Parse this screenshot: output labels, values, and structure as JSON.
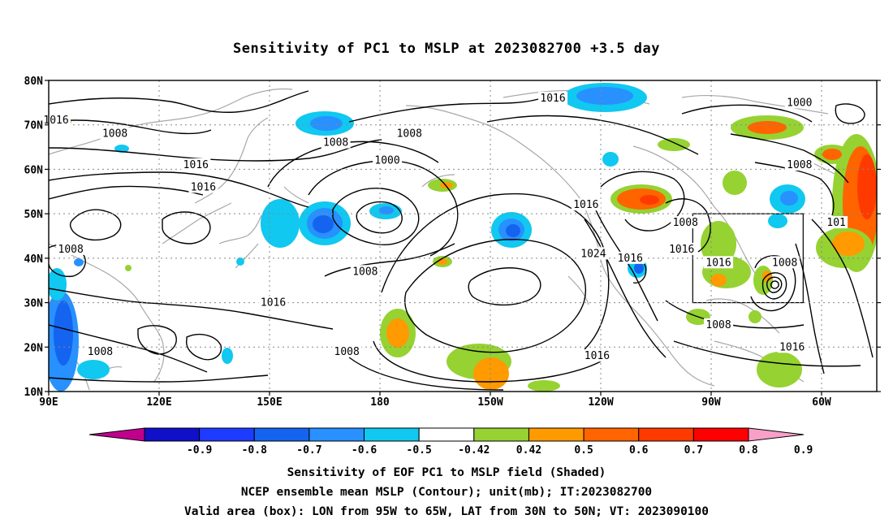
{
  "title": "Sensitivity of PC1 to MSLP at 2023082700 +3.5 day",
  "lat_ticks": [
    "80N",
    "70N",
    "60N",
    "50N",
    "40N",
    "30N",
    "20N",
    "10N"
  ],
  "lon_ticks": [
    "90E",
    "120E",
    "150E",
    "180",
    "150W",
    "120W",
    "90W",
    "60W"
  ],
  "colorbar": {
    "labels": [
      "-0.9",
      "-0.8",
      "-0.7",
      "-0.6",
      "-0.5",
      "-0.42",
      "0.42",
      "0.5",
      "0.6",
      "0.7",
      "0.8",
      "0.9"
    ],
    "colors": [
      "#c0008c",
      "#1010c8",
      "#1e3cff",
      "#1464f0",
      "#2890ff",
      "#10c8f0",
      "#ffffff",
      "#96d232",
      "#ff9a00",
      "#ff6400",
      "#ff3a00",
      "#ff0000",
      "#f8a0c8"
    ]
  },
  "contour_labels": [
    {
      "text": "1016",
      "lon": 92,
      "lat": 71
    },
    {
      "text": "1008",
      "lon": 108,
      "lat": 68
    },
    {
      "text": "1008",
      "lon": 168,
      "lat": 66
    },
    {
      "text": "1008",
      "lon": 188,
      "lat": 68
    },
    {
      "text": "1016",
      "lon": 130,
      "lat": 61
    },
    {
      "text": "1016",
      "lon": 132,
      "lat": 56
    },
    {
      "text": "1000",
      "lon": 182,
      "lat": 62
    },
    {
      "text": "1016",
      "lon": 227,
      "lat": 76
    },
    {
      "text": "1000",
      "lon": 294,
      "lat": 75
    },
    {
      "text": "1008",
      "lon": 294,
      "lat": 61
    },
    {
      "text": "1016",
      "lon": 236,
      "lat": 52
    },
    {
      "text": "1008",
      "lon": 96,
      "lat": 42
    },
    {
      "text": "1024",
      "lon": 238,
      "lat": 41
    },
    {
      "text": "1008",
      "lon": 176,
      "lat": 37
    },
    {
      "text": "1008",
      "lon": 263,
      "lat": 48
    },
    {
      "text": "1016",
      "lon": 262,
      "lat": 42
    },
    {
      "text": "1016",
      "lon": 248,
      "lat": 40
    },
    {
      "text": "1016",
      "lon": 272,
      "lat": 39
    },
    {
      "text": "1008",
      "lon": 290,
      "lat": 39
    },
    {
      "text": "1016",
      "lon": 151,
      "lat": 30
    },
    {
      "text": "1008",
      "lon": 104,
      "lat": 19
    },
    {
      "text": "1008",
      "lon": 171,
      "lat": 19
    },
    {
      "text": "1016",
      "lon": 239,
      "lat": 18
    },
    {
      "text": "1008",
      "lon": 272,
      "lat": 25
    },
    {
      "text": "1016",
      "lon": 292,
      "lat": 20
    },
    {
      "text": "101",
      "lon": 304,
      "lat": 48
    }
  ],
  "valid_box": {
    "lon_min": 265,
    "lon_max": 295,
    "lat_min": 30,
    "lat_max": 50
  },
  "caption": {
    "line1": "Sensitivity of EOF PC1 to MSLP field (Shaded)",
    "line2": "NCEP ensemble mean MSLP (Contour); unit(mb); IT:2023082700",
    "line3": "Valid area (box): LON from 95W to 65W, LAT from 30N to 50N; VT: 2023090100"
  }
}
